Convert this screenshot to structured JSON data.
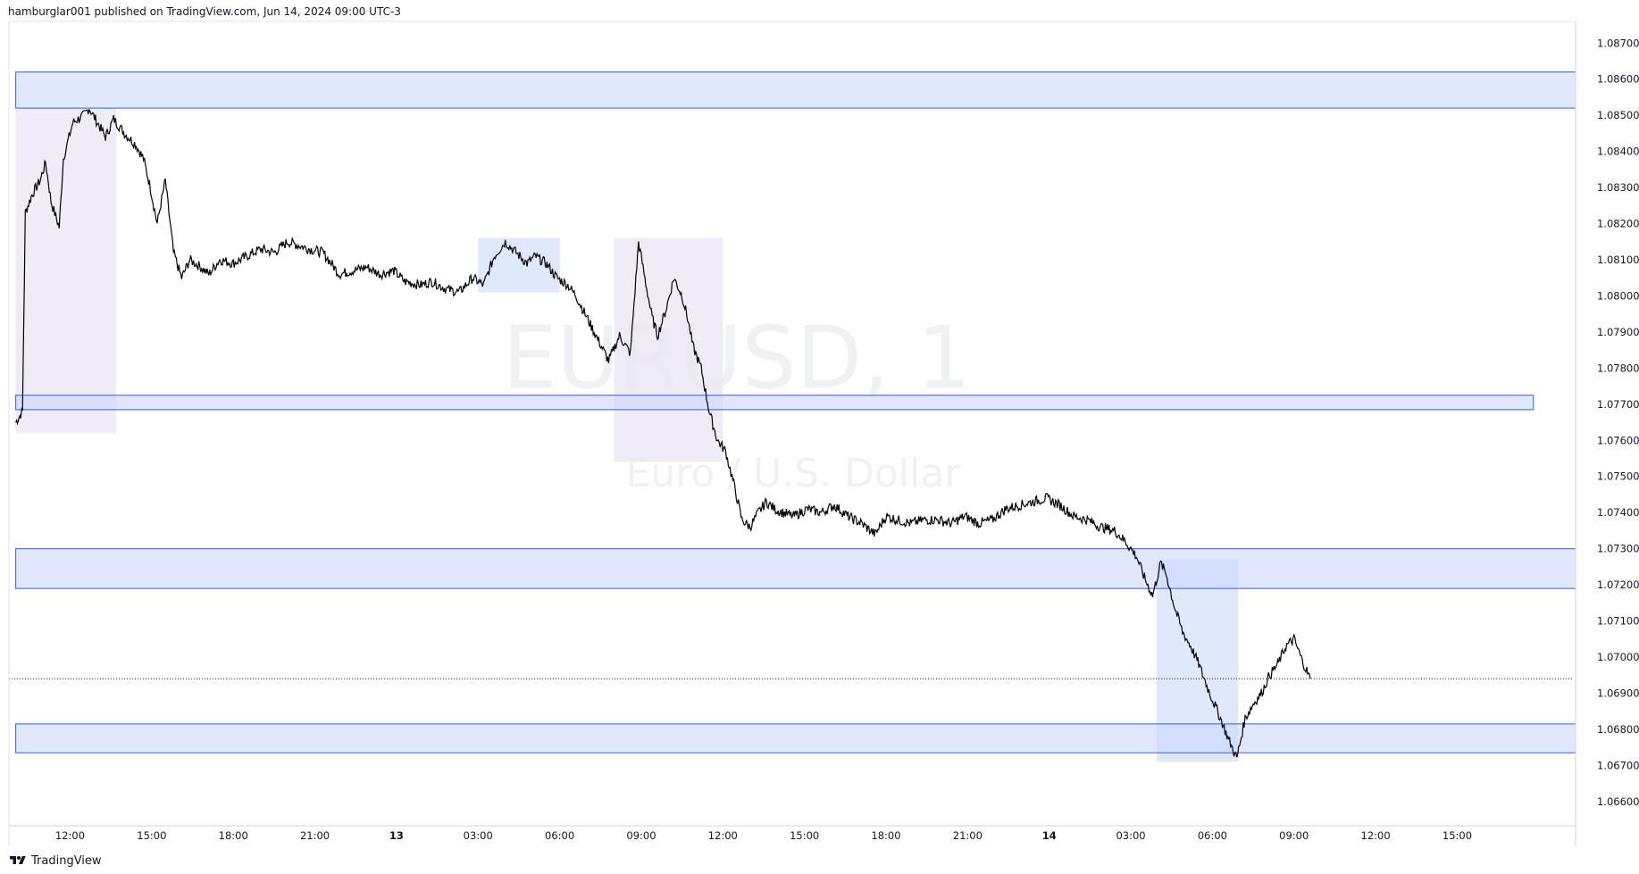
{
  "header": {
    "published": "hamburglar001 published on TradingView.com, Jun 14, 2024 09:00 UTC-3"
  },
  "footer": {
    "brand": "TradingView",
    "logo_icon": "tradingview-logo-icon"
  },
  "watermark": {
    "symbol": "EURUSD, 1",
    "description": "Euro / U.S. Dollar"
  },
  "colors": {
    "price_line": "#000000",
    "zone_fill": "#c9d4fb",
    "zone_border": "#2962ff",
    "session_fill": "#e9e5f6",
    "session_blue_fill": "#d6e0fb",
    "axis_text": "#131722",
    "watermark": "#f0f1f4"
  },
  "chart_data": {
    "type": "line",
    "title": "EURUSD, 1",
    "subtitle": "Euro / U.S. Dollar",
    "ylim": [
      1.0656,
      1.0876
    ],
    "y_ticks": [
      "1.08700",
      "1.08600",
      "1.08500",
      "1.08400",
      "1.08300",
      "1.08200",
      "1.08100",
      "1.08000",
      "1.07900",
      "1.07800",
      "1.07700",
      "1.07600",
      "1.07500",
      "1.07400",
      "1.07300",
      "1.07200",
      "1.07100",
      "1.07000",
      "1.06900",
      "1.06800",
      "1.06700",
      "1.06600"
    ],
    "x_axis": {
      "start_hour": 10,
      "end_hour": 65,
      "ticks": [
        {
          "hour": 12,
          "label": "12:00",
          "bold": false
        },
        {
          "hour": 15,
          "label": "15:00",
          "bold": false
        },
        {
          "hour": 18,
          "label": "18:00",
          "bold": false
        },
        {
          "hour": 21,
          "label": "21:00",
          "bold": false
        },
        {
          "hour": 24,
          "label": "13",
          "bold": true
        },
        {
          "hour": 27,
          "label": "03:00",
          "bold": false
        },
        {
          "hour": 30,
          "label": "06:00",
          "bold": false
        },
        {
          "hour": 33,
          "label": "09:00",
          "bold": false
        },
        {
          "hour": 36,
          "label": "12:00",
          "bold": false
        },
        {
          "hour": 39,
          "label": "15:00",
          "bold": false
        },
        {
          "hour": 42,
          "label": "18:00",
          "bold": false
        },
        {
          "hour": 45,
          "label": "21:00",
          "bold": false
        },
        {
          "hour": 48,
          "label": "14",
          "bold": true
        },
        {
          "hour": 51,
          "label": "03:00",
          "bold": false
        },
        {
          "hour": 54,
          "label": "06:00",
          "bold": false
        },
        {
          "hour": 57,
          "label": "09:00",
          "bold": false
        },
        {
          "hour": 60,
          "label": "12:00",
          "bold": false
        },
        {
          "hour": 63,
          "label": "15:00",
          "bold": false
        }
      ]
    },
    "series": [
      {
        "x_hours": [
          10.0,
          10.25,
          10.35,
          10.6,
          10.9,
          11.1,
          11.3,
          11.6,
          11.75,
          12.1,
          12.5,
          12.7,
          13.0,
          13.3,
          13.6,
          14.0,
          14.4,
          14.7,
          14.95,
          15.2,
          15.5,
          15.8,
          16.1,
          16.4,
          16.8,
          17.1,
          17.5,
          18.0,
          18.5,
          19.0,
          19.5,
          20.0,
          20.4,
          20.8,
          21.3,
          21.9,
          22.4,
          22.9,
          23.4,
          23.9,
          24.3,
          24.9,
          25.3,
          25.8,
          26.3,
          26.8,
          27.2,
          27.6,
          28.0,
          28.4,
          28.8,
          29.1,
          29.5,
          29.9,
          30.3,
          30.6,
          31.0,
          31.4,
          31.8,
          32.2,
          32.6,
          32.9,
          33.2,
          33.4,
          33.6,
          33.9,
          34.2,
          34.5,
          34.7,
          34.9,
          35.2,
          35.5,
          35.8,
          36.1,
          36.4,
          36.7,
          37.0,
          37.3,
          37.6,
          37.9,
          38.2,
          38.6,
          39.1,
          39.6,
          40.1,
          40.6,
          41.1,
          41.6,
          42.0,
          42.4,
          42.9,
          43.4,
          43.9,
          44.4,
          44.9,
          45.4,
          45.9,
          46.4,
          46.9,
          47.4,
          47.9,
          48.4,
          48.9,
          49.4,
          49.9,
          50.4,
          50.8,
          51.2,
          51.5,
          51.8,
          52.1,
          52.3,
          52.6,
          52.9,
          53.2,
          53.5,
          53.9,
          54.3,
          54.6,
          54.9,
          55.2,
          55.5,
          55.8,
          56.1,
          56.4,
          56.7,
          57.0,
          57.3,
          57.6
        ],
        "values": [
          1.0765,
          1.0768,
          1.0823,
          1.0828,
          1.0832,
          1.0837,
          1.0826,
          1.0819,
          1.0838,
          1.0848,
          1.085,
          1.0852,
          1.0848,
          1.0844,
          1.0849,
          1.0845,
          1.0842,
          1.0838,
          1.083,
          1.082,
          1.0832,
          1.0812,
          1.0805,
          1.081,
          1.0808,
          1.0806,
          1.081,
          1.0809,
          1.0811,
          1.0813,
          1.0812,
          1.0815,
          1.0814,
          1.0813,
          1.0812,
          1.0806,
          1.0807,
          1.0808,
          1.0806,
          1.0807,
          1.0804,
          1.0803,
          1.0804,
          1.0802,
          1.0801,
          1.0805,
          1.0803,
          1.0811,
          1.0815,
          1.0812,
          1.0809,
          1.0811,
          1.0809,
          1.0805,
          1.0803,
          1.08,
          1.0794,
          1.0788,
          1.0782,
          1.0789,
          1.0784,
          1.0815,
          1.0802,
          1.0794,
          1.0789,
          1.0796,
          1.0805,
          1.08,
          1.0794,
          1.0786,
          1.078,
          1.0768,
          1.076,
          1.0757,
          1.0748,
          1.0738,
          1.0736,
          1.074,
          1.0743,
          1.0741,
          1.074,
          1.0739,
          1.0741,
          1.074,
          1.0742,
          1.0739,
          1.0737,
          1.0734,
          1.0739,
          1.0738,
          1.0737,
          1.0738,
          1.0738,
          1.0737,
          1.0739,
          1.0737,
          1.0738,
          1.0741,
          1.0742,
          1.0743,
          1.0744,
          1.0742,
          1.0739,
          1.0738,
          1.0736,
          1.0735,
          1.0732,
          1.0728,
          1.0722,
          1.0717,
          1.0726,
          1.0723,
          1.0714,
          1.0707,
          1.0703,
          1.0698,
          1.069,
          1.0683,
          1.0677,
          1.0672,
          1.0683,
          1.0687,
          1.069,
          1.0695,
          1.0698,
          1.0703,
          1.0705,
          1.0699,
          1.0694
        ]
      }
    ],
    "price_zones": [
      {
        "top": 1.0862,
        "bottom": 1.0852,
        "hour_start": 10.0,
        "hour_end": 68.5
      },
      {
        "top": 1.07725,
        "bottom": 1.07685,
        "hour_start": 10.0,
        "hour_end": 65.8
      },
      {
        "top": 1.073,
        "bottom": 1.0719,
        "hour_start": 10.0,
        "hour_end": 68.5
      },
      {
        "top": 1.06815,
        "bottom": 1.06735,
        "hour_start": 10.0,
        "hour_end": 68.5
      }
    ],
    "session_boxes": [
      {
        "hour_start": 10.0,
        "hour_end": 13.7,
        "top": 1.0852,
        "bottom": 1.0762,
        "kind": "purple"
      },
      {
        "hour_start": 27.0,
        "hour_end": 30.0,
        "top": 1.0816,
        "bottom": 1.0801,
        "kind": "blue"
      },
      {
        "hour_start": 32.0,
        "hour_end": 36.0,
        "top": 1.0816,
        "bottom": 1.0754,
        "kind": "purple"
      },
      {
        "hour_start": 51.95,
        "hour_end": 54.95,
        "top": 1.0727,
        "bottom": 1.0671,
        "kind": "blue"
      }
    ],
    "last_price": 1.0694,
    "grid": false,
    "legend": "none"
  }
}
